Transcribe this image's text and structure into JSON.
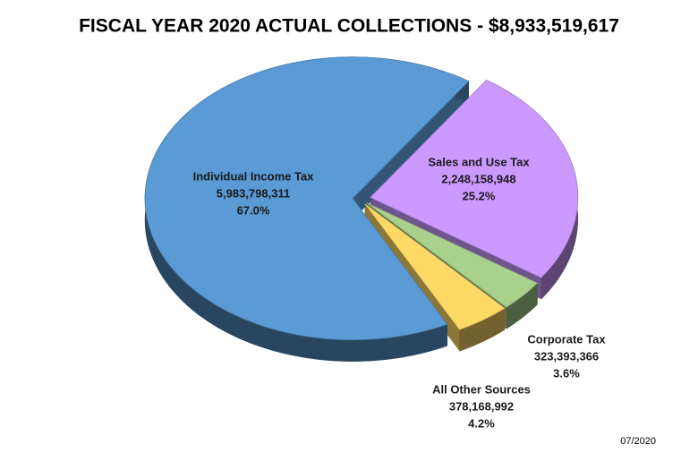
{
  "chart_data": {
    "type": "pie",
    "title": "FISCAL YEAR 2020 ACTUAL COLLECTIONS - $8,933,519,617",
    "categories": [
      "Sales and Use Tax",
      "Corporate Tax",
      "All Other Sources",
      "Individual Income Tax"
    ],
    "values": [
      2248158948,
      323393366,
      378168992,
      5983798311
    ],
    "value_labels": [
      "2,248,158,948",
      "323,393,366",
      "378,168,992",
      "5,983,798,311"
    ],
    "percents": [
      25.2,
      3.6,
      4.2,
      67.0
    ],
    "percent_labels": [
      "25.2%",
      "3.6%",
      "4.2%",
      "67.0%"
    ],
    "colors": [
      "#cc99ff",
      "#a9d18e",
      "#ffd966",
      "#5b9bd5"
    ],
    "footnote": "07/2020"
  }
}
